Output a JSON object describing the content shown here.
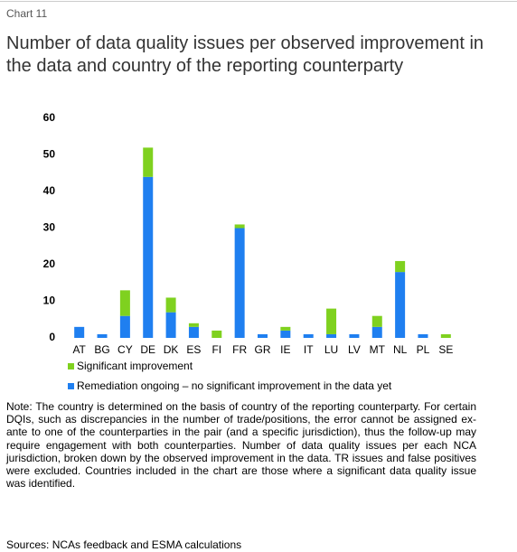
{
  "chart_label": "Chart  11",
  "chart_data": {
    "type": "stacked_bar",
    "title": "Number of data quality issues per observed improvement in the data and country of the reporting counterparty",
    "categories": [
      "AT",
      "BG",
      "CY",
      "DE",
      "DK",
      "ES",
      "FI",
      "FR",
      "GR",
      "IE",
      "IT",
      "LU",
      "LV",
      "MT",
      "NL",
      "PL",
      "SE"
    ],
    "series": [
      {
        "name": "Remediation ongoing – no significant improvement in the data yet",
        "color": "#1f7ff0",
        "values": [
          3,
          1,
          6,
          44,
          7,
          3,
          0,
          30,
          1,
          2,
          1,
          1,
          1,
          3,
          18,
          1,
          0
        ]
      },
      {
        "name": "Significant improvement",
        "color": "#7fd11f",
        "values": [
          0,
          0,
          7,
          8,
          4,
          1,
          2,
          1,
          0,
          1,
          0,
          7,
          0,
          3,
          3,
          0,
          1
        ]
      }
    ],
    "ylim": [
      0,
      60
    ],
    "yticks": [
      0,
      10,
      20,
      30,
      40,
      50,
      60
    ],
    "grid": false
  },
  "note": "Note: The country is determined on the basis of country of the reporting counterparty. For certain DQIs, such as discrepancies in the number of trade/positions, the error cannot be assigned ex-ante to one of the counterparties in the pair (and a specific jurisdiction), thus the follow-up may require engagement with both counterparties. Number of data quality issues per each NCA jurisdiction, broken down by the observed improvement in the data. TR issues and false positives were excluded. Countries included in the chart are those where a significant data quality issue was identified.",
  "sources": "Sources: NCAs feedback and ESMA calculations"
}
